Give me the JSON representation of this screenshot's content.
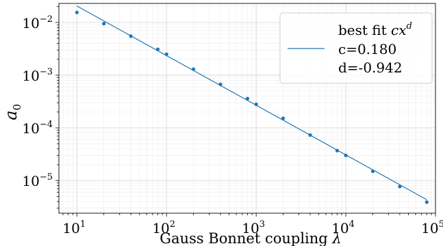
{
  "chart_data": {
    "type": "scatter",
    "xlabel_text": "Gauss Bonnet coupling ",
    "xlabel_symbol": "λ",
    "ylabel_symbol": "a",
    "ylabel_subscript": "0",
    "x_scale": "log",
    "y_scale": "log",
    "xlim": [
      6.3,
      100000
    ],
    "ylim": [
      2.4e-06,
      0.023
    ],
    "grid": true,
    "x_ticks": [
      {
        "value": 10,
        "base": "10",
        "exp": "1"
      },
      {
        "value": 100,
        "base": "10",
        "exp": "2"
      },
      {
        "value": 1000,
        "base": "10",
        "exp": "3"
      },
      {
        "value": 10000,
        "base": "10",
        "exp": "4"
      },
      {
        "value": 100000,
        "base": "10",
        "exp": "5"
      }
    ],
    "y_ticks": [
      {
        "value": 1e-05,
        "base": "10",
        "exp": "−5"
      },
      {
        "value": 0.0001,
        "base": "10",
        "exp": "−4"
      },
      {
        "value": 0.001,
        "base": "10",
        "exp": "−3"
      },
      {
        "value": 0.01,
        "base": "10",
        "exp": "−2"
      }
    ],
    "series": [
      {
        "type": "scatter",
        "color": "#1f77b4",
        "x": [
          10,
          20,
          40,
          80,
          100,
          200,
          400,
          800,
          1000,
          2000,
          4000,
          8000,
          10000,
          20000,
          40000,
          80000
        ],
        "y": [
          0.0155,
          0.0095,
          0.0055,
          0.0031,
          0.0025,
          0.0013,
          0.00067,
          0.00036,
          0.00028,
          0.000152,
          7.3e-05,
          3.7e-05,
          3e-05,
          1.5e-05,
          7.7e-06,
          3.9e-06
        ]
      },
      {
        "type": "line",
        "color": "#1f77b4",
        "fit": {
          "c": 0.18,
          "d": -0.942
        },
        "x_range": [
          10,
          80000
        ]
      }
    ],
    "legend": {
      "position": "top-right",
      "title_text": "best fit ",
      "title_math_base": "cx",
      "title_math_sup": "d",
      "line1": "c=0.180",
      "line2": "d=-0.942"
    }
  }
}
